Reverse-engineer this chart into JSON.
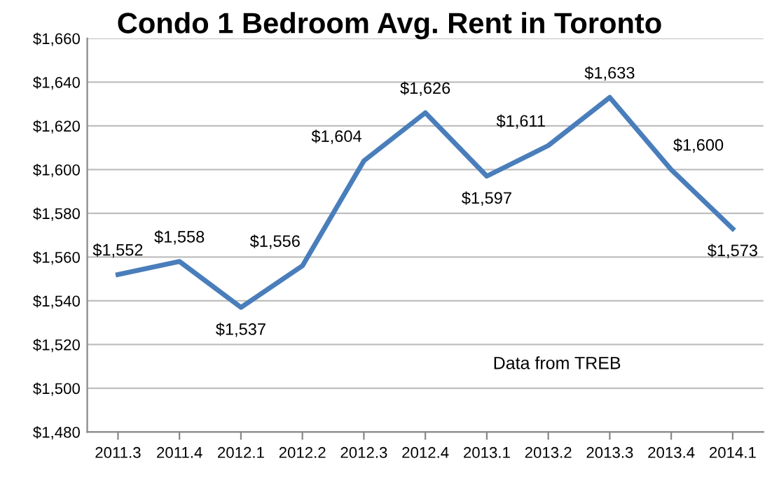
{
  "chart_data": {
    "type": "line",
    "title": "Condo 1 Bedroom Avg. Rent in Toronto",
    "categories": [
      "2011.3",
      "2011.4",
      "2012.1",
      "2012.2",
      "2012.3",
      "2012.4",
      "2013.1",
      "2013.2",
      "2013.3",
      "2013.4",
      "2014.1"
    ],
    "series": [
      {
        "color": "#4a7ebb",
        "values": [
          1552,
          1558,
          1537,
          1556,
          1604,
          1626,
          1597,
          1611,
          1633,
          1600,
          1573
        ],
        "value_labels": [
          "$1,552",
          "$1,558",
          "$1,537",
          "$1,556",
          "$1,604",
          "$1,626",
          "$1,597",
          "$1,611",
          "$1,633",
          "$1,600",
          "$1,573"
        ]
      }
    ],
    "ylim": [
      1480,
      1660
    ],
    "yticks": [
      {
        "value": 1480,
        "label": "$1,480"
      },
      {
        "value": 1500,
        "label": "$1,500"
      },
      {
        "value": 1520,
        "label": "$1,520"
      },
      {
        "value": 1540,
        "label": "$1,540"
      },
      {
        "value": 1560,
        "label": "$1,560"
      },
      {
        "value": 1580,
        "label": "$1,580"
      },
      {
        "value": 1600,
        "label": "$1,600"
      },
      {
        "value": 1620,
        "label": "$1,620"
      },
      {
        "value": 1640,
        "label": "$1,640"
      },
      {
        "value": 1660,
        "label": "$1,660"
      }
    ],
    "grid": "y",
    "marker": "none",
    "line_style": "solid",
    "legend": false,
    "annotations": [
      "Data from TREB"
    ]
  }
}
